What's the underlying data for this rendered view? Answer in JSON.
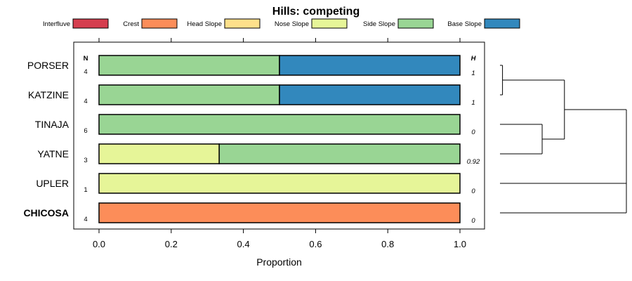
{
  "chart_data": {
    "type": "bar",
    "orientation": "horizontal",
    "stacked": true,
    "title": "Hills: competing",
    "xlabel": "Proportion",
    "ylabel": "",
    "xlim": [
      0,
      1
    ],
    "x_ticks": [
      "0.0",
      "0.2",
      "0.4",
      "0.6",
      "0.8",
      "1.0"
    ],
    "x_tick_values": [
      0,
      0.2,
      0.4,
      0.6,
      0.8,
      1.0
    ],
    "n_header": "N",
    "h_header": "H",
    "legend": [
      {
        "name": "Interfluve",
        "color": "#d53e4f"
      },
      {
        "name": "Crest",
        "color": "#fc8d59"
      },
      {
        "name": "Head Slope",
        "color": "#fee08b"
      },
      {
        "name": "Nose Slope",
        "color": "#e6f598"
      },
      {
        "name": "Side Slope",
        "color": "#99d594"
      },
      {
        "name": "Base Slope",
        "color": "#3288bd"
      }
    ],
    "rows": [
      {
        "label": "PORSER",
        "n": "4",
        "h": "1",
        "bold": false,
        "segments": [
          {
            "component": "Side Slope",
            "value": 0.5
          },
          {
            "component": "Base Slope",
            "value": 0.5
          }
        ]
      },
      {
        "label": "KATZINE",
        "n": "4",
        "h": "1",
        "bold": false,
        "segments": [
          {
            "component": "Side Slope",
            "value": 0.5
          },
          {
            "component": "Base Slope",
            "value": 0.5
          }
        ]
      },
      {
        "label": "TINAJA",
        "n": "6",
        "h": "0",
        "bold": false,
        "segments": [
          {
            "component": "Side Slope",
            "value": 1.0
          }
        ]
      },
      {
        "label": "YATNE",
        "n": "3",
        "h": "0.92",
        "bold": false,
        "segments": [
          {
            "component": "Nose Slope",
            "value": 0.333
          },
          {
            "component": "Side Slope",
            "value": 0.667
          }
        ]
      },
      {
        "label": "UPLER",
        "n": "1",
        "h": "0",
        "bold": false,
        "segments": [
          {
            "component": "Nose Slope",
            "value": 1.0
          }
        ]
      },
      {
        "label": "CHICOSA",
        "n": "4",
        "h": "0",
        "bold": true,
        "segments": [
          {
            "component": "Crest",
            "value": 1.0
          }
        ]
      }
    ],
    "dendrogram": {
      "description": "hierarchical clustering of rows by composition",
      "merges": [
        {
          "left": "PORSER",
          "right": "KATZINE",
          "height": 0.0
        },
        {
          "left": "TINAJA",
          "right": "YATNE",
          "height": 0.32
        },
        {
          "left": "PORSER+KATZINE",
          "right": "TINAJA+YATNE",
          "height": 0.5
        },
        {
          "left": "UPLER",
          "right": "CHICOSA",
          "height": 1.0
        },
        {
          "left": "PORSER+KATZINE+TINAJA+YATNE",
          "right": "UPLER+CHICOSA",
          "height": 1.0
        }
      ]
    }
  }
}
